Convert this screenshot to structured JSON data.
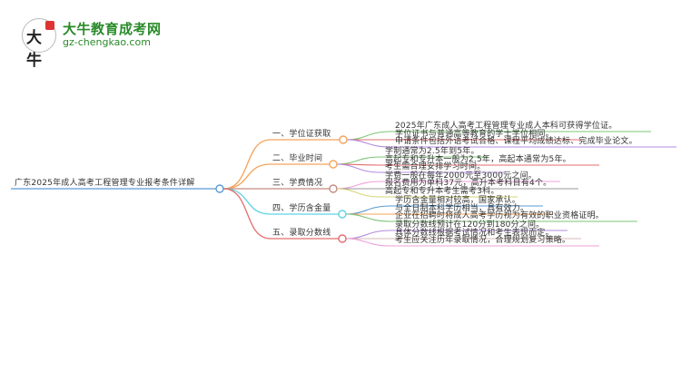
{
  "logo": {
    "name_cn": "大牛教育成考网",
    "url_text": "gz-chengkao.com",
    "mark_text": "大牛"
  },
  "root": {
    "label": "广东2025年成人高考工程管理专业报考条件详解",
    "color": "#5b9bd5"
  },
  "branches": [
    {
      "label": "一、学位证获取",
      "color": "#f5a35b",
      "leaves": [
        {
          "text": "2025年广东成人高考工程管理专业成人本科可获得学位证。",
          "color": "#7cc576"
        },
        {
          "text": "学位证书与普通高等教育的学士学位相同。",
          "color": "#e36d6d"
        },
        {
          "text": "申请条件包括外语考试合格、课程平均成绩达标、完成毕业论文。",
          "color": "#b48be0"
        }
      ]
    },
    {
      "label": "二、毕业时间",
      "color": "#f5a35b",
      "leaves": [
        {
          "text": "学制通常为2.5年到5年。",
          "color": "#7cc576"
        },
        {
          "text": "高起专和专升本一般为2.5年，高起本通常为5年。",
          "color": "#e36d6d"
        },
        {
          "text": "考生需合理安排学习时间。",
          "color": "#b48be0"
        }
      ]
    },
    {
      "label": "三、学费情况",
      "color": "#c48c82",
      "leaves": [
        {
          "text": "学费一般在每年2000元至3000元之间。",
          "color": "#f0a0d8"
        },
        {
          "text": "报名费用为单科37元，高升本考科目有4个。",
          "color": "#999999"
        },
        {
          "text": "高起专和专升本考生需考3科。",
          "color": "#d6d67a"
        }
      ]
    },
    {
      "label": "四、学历含金量",
      "color": "#5fd3e3",
      "leaves": [
        {
          "text": "学历含金量相对较高，国家承认。",
          "color": "#5b9bd5"
        },
        {
          "text": "与全日制本科学历相当，具有效力。",
          "color": "#f5a35b"
        },
        {
          "text": "企业在招聘时将成人高考学历视为有效的职业资格证明。",
          "color": "#7cc576"
        }
      ]
    },
    {
      "label": "五、录取分数线",
      "color": "#e36d6d",
      "leaves": [
        {
          "text": "录取分数线预计在120分到180分之间。",
          "color": "#b48be0"
        },
        {
          "text": "具体分数线根据考试情况和考生表现而定。",
          "color": "#d7b8b8"
        },
        {
          "text": "考生应关注历年录取情况，合理规划复习策略。",
          "color": "#f0a0d8"
        }
      ]
    }
  ]
}
